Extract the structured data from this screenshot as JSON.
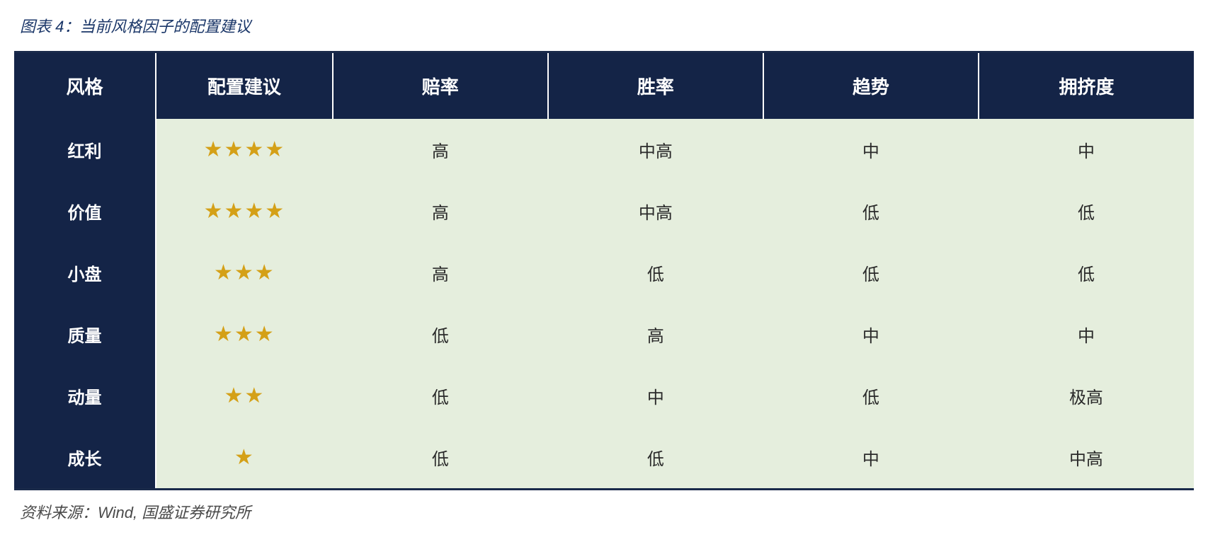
{
  "caption": "图表 4：当前风格因子的配置建议",
  "source": "资料来源：Wind, 国盛证券研究所",
  "table": {
    "type": "table",
    "header_bg": "#142447",
    "header_fg": "#ffffff",
    "body_bg": "#e5eedd",
    "body_fg": "#2a2a2a",
    "star_color": "#d4a017",
    "star_char": "★",
    "columns": [
      "风格",
      "配置建议",
      "赔率",
      "胜率",
      "趋势",
      "拥挤度"
    ],
    "rows": [
      {
        "style": "红利",
        "rating": 4,
        "odds": "高",
        "winrate": "中高",
        "trend": "中",
        "crowd": "中"
      },
      {
        "style": "价值",
        "rating": 4,
        "odds": "高",
        "winrate": "中高",
        "trend": "低",
        "crowd": "低"
      },
      {
        "style": "小盘",
        "rating": 3,
        "odds": "高",
        "winrate": "低",
        "trend": "低",
        "crowd": "低"
      },
      {
        "style": "质量",
        "rating": 3,
        "odds": "低",
        "winrate": "高",
        "trend": "中",
        "crowd": "中"
      },
      {
        "style": "动量",
        "rating": 2,
        "odds": "低",
        "winrate": "中",
        "trend": "低",
        "crowd": "极高"
      },
      {
        "style": "成长",
        "rating": 1,
        "odds": "低",
        "winrate": "低",
        "trend": "中",
        "crowd": "中高"
      }
    ]
  }
}
